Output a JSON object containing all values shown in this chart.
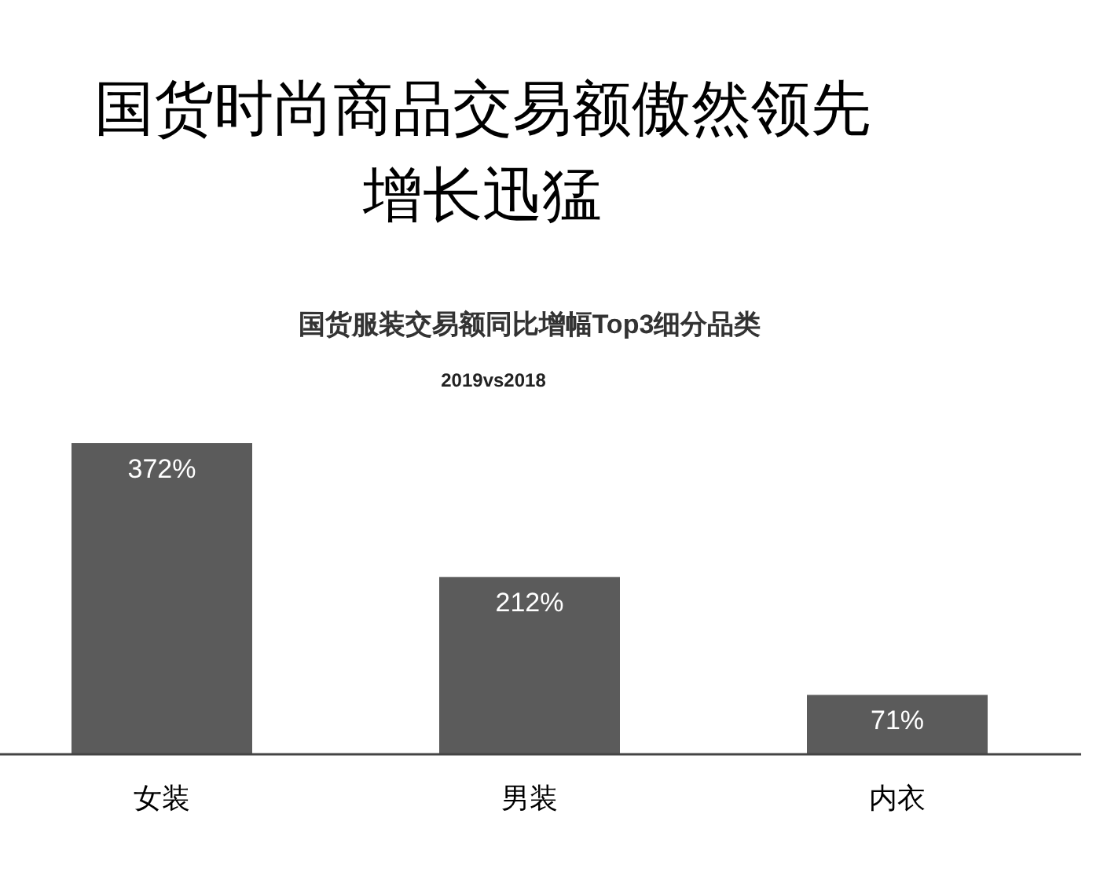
{
  "chart_data": {
    "type": "bar",
    "title": "国货时尚商品交易额傲然领先增长迅猛",
    "subtitle": "国货服装交易额同比增幅Top3细分品类",
    "annotations": [
      "2019vs2018"
    ],
    "categories": [
      "女装",
      "男装",
      "内衣"
    ],
    "values": [
      372,
      212,
      71
    ],
    "value_labels": [
      "372%",
      "212%",
      "71%"
    ],
    "color": "#5b5b5b"
  }
}
